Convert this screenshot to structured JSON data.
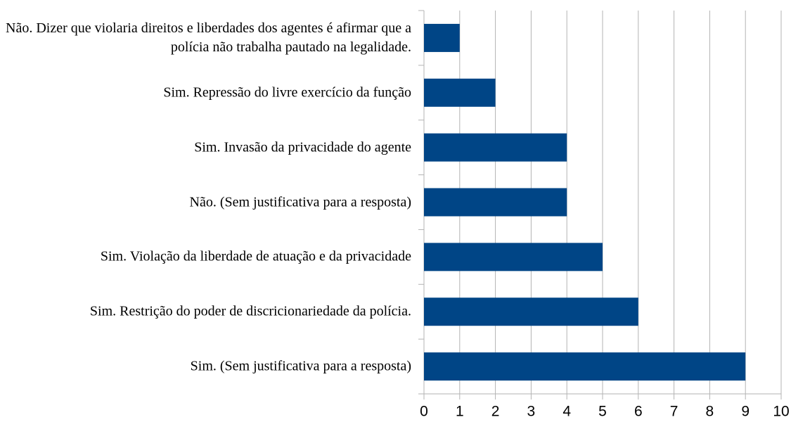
{
  "chart_data": {
    "type": "bar",
    "orientation": "horizontal",
    "categories": [
      "Não. Dizer que violaria direitos e liberdades dos agentes é afirmar que a polícia não trabalha pautado na legalidade.",
      "Sim. Repressão do livre exercício da função",
      "Sim. Invasão da privacidade do agente",
      "Não. (Sem justificativa para a resposta)",
      "Sim. Violação da liberdade de atuação e da privacidade",
      "Sim. Restrição do poder de discricionariedade da polícia.",
      "Sim. (Sem justificativa para a resposta)"
    ],
    "values": [
      1,
      2,
      4,
      4,
      5,
      6,
      9
    ],
    "color": "#004586",
    "xlim": [
      0,
      10
    ],
    "xticks": [
      0,
      1,
      2,
      3,
      4,
      5,
      6,
      7,
      8,
      9,
      10
    ],
    "grid": true
  }
}
